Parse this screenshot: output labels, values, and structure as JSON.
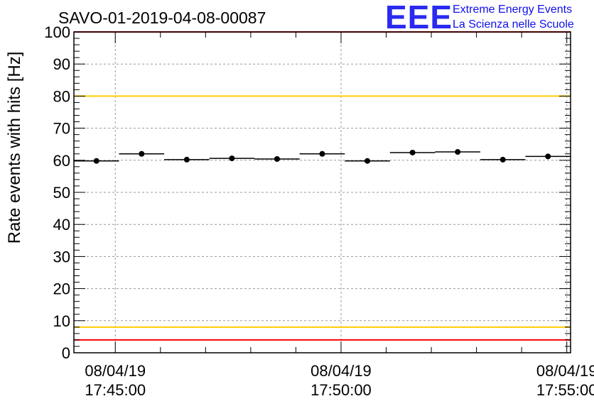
{
  "chart_data": {
    "type": "scatter",
    "title": "SAVO-01-2019-04-08-00087",
    "ylabel": "Rate events with hits [Hz]",
    "xlabel": "",
    "ylim": [
      0,
      100
    ],
    "yticks": [
      0,
      10,
      20,
      30,
      40,
      50,
      60,
      70,
      80,
      90,
      100
    ],
    "grid": true,
    "xticks": [
      {
        "date": "08/04/19",
        "time": "17:45:00"
      },
      {
        "date": "08/04/19",
        "time": "17:50:00"
      },
      {
        "date": "08/04/19",
        "time": "17:55:00"
      }
    ],
    "xrange": [
      "17:44:05",
      "17:55:05"
    ],
    "points": [
      {
        "x": "17:44:35",
        "y": 59.8
      },
      {
        "x": "17:45:35",
        "y": 62.0
      },
      {
        "x": "17:46:35",
        "y": 60.2
      },
      {
        "x": "17:47:35",
        "y": 60.6
      },
      {
        "x": "17:48:35",
        "y": 60.4
      },
      {
        "x": "17:49:35",
        "y": 62.0
      },
      {
        "x": "17:50:35",
        "y": 59.8
      },
      {
        "x": "17:51:35",
        "y": 62.4
      },
      {
        "x": "17:52:35",
        "y": 62.6
      },
      {
        "x": "17:53:35",
        "y": 60.2
      },
      {
        "x": "17:54:35",
        "y": 61.2
      }
    ],
    "bin_width_seconds": 60,
    "reference_lines": [
      {
        "y": 100,
        "color": "#ff0000"
      },
      {
        "y": 80,
        "color": "#ffcc00"
      },
      {
        "y": 8,
        "color": "#ffcc00"
      },
      {
        "y": 4,
        "color": "#ff0000"
      }
    ]
  },
  "logo": {
    "letters": "EEE",
    "line1": "Extreme Energy Events",
    "line2": "La Scienza nelle Scuole",
    "color": "#1a1af0"
  }
}
